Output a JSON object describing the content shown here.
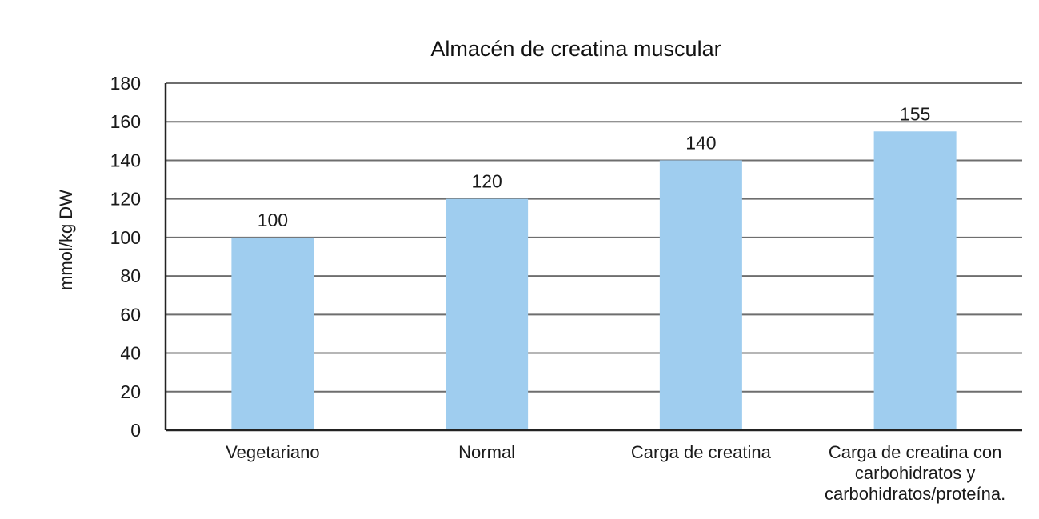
{
  "chart_data": {
    "type": "bar",
    "title": "Almacén de creatina muscular",
    "ylabel": "mmol/kg DW",
    "xlabel": "",
    "ylim": [
      0,
      180
    ],
    "ytick_step": 20,
    "grid": true,
    "legend": "none",
    "bar_color": "#9fcdef",
    "categories": [
      [
        "Vegetariano"
      ],
      [
        "Normal"
      ],
      [
        "Carga de creatina"
      ],
      [
        "Carga de creatina con",
        "carbohidratos y",
        "carbohidratos/proteína."
      ]
    ],
    "values": [
      100,
      120,
      140,
      155
    ],
    "data_labels": [
      "100",
      "120",
      "140",
      "155"
    ]
  }
}
